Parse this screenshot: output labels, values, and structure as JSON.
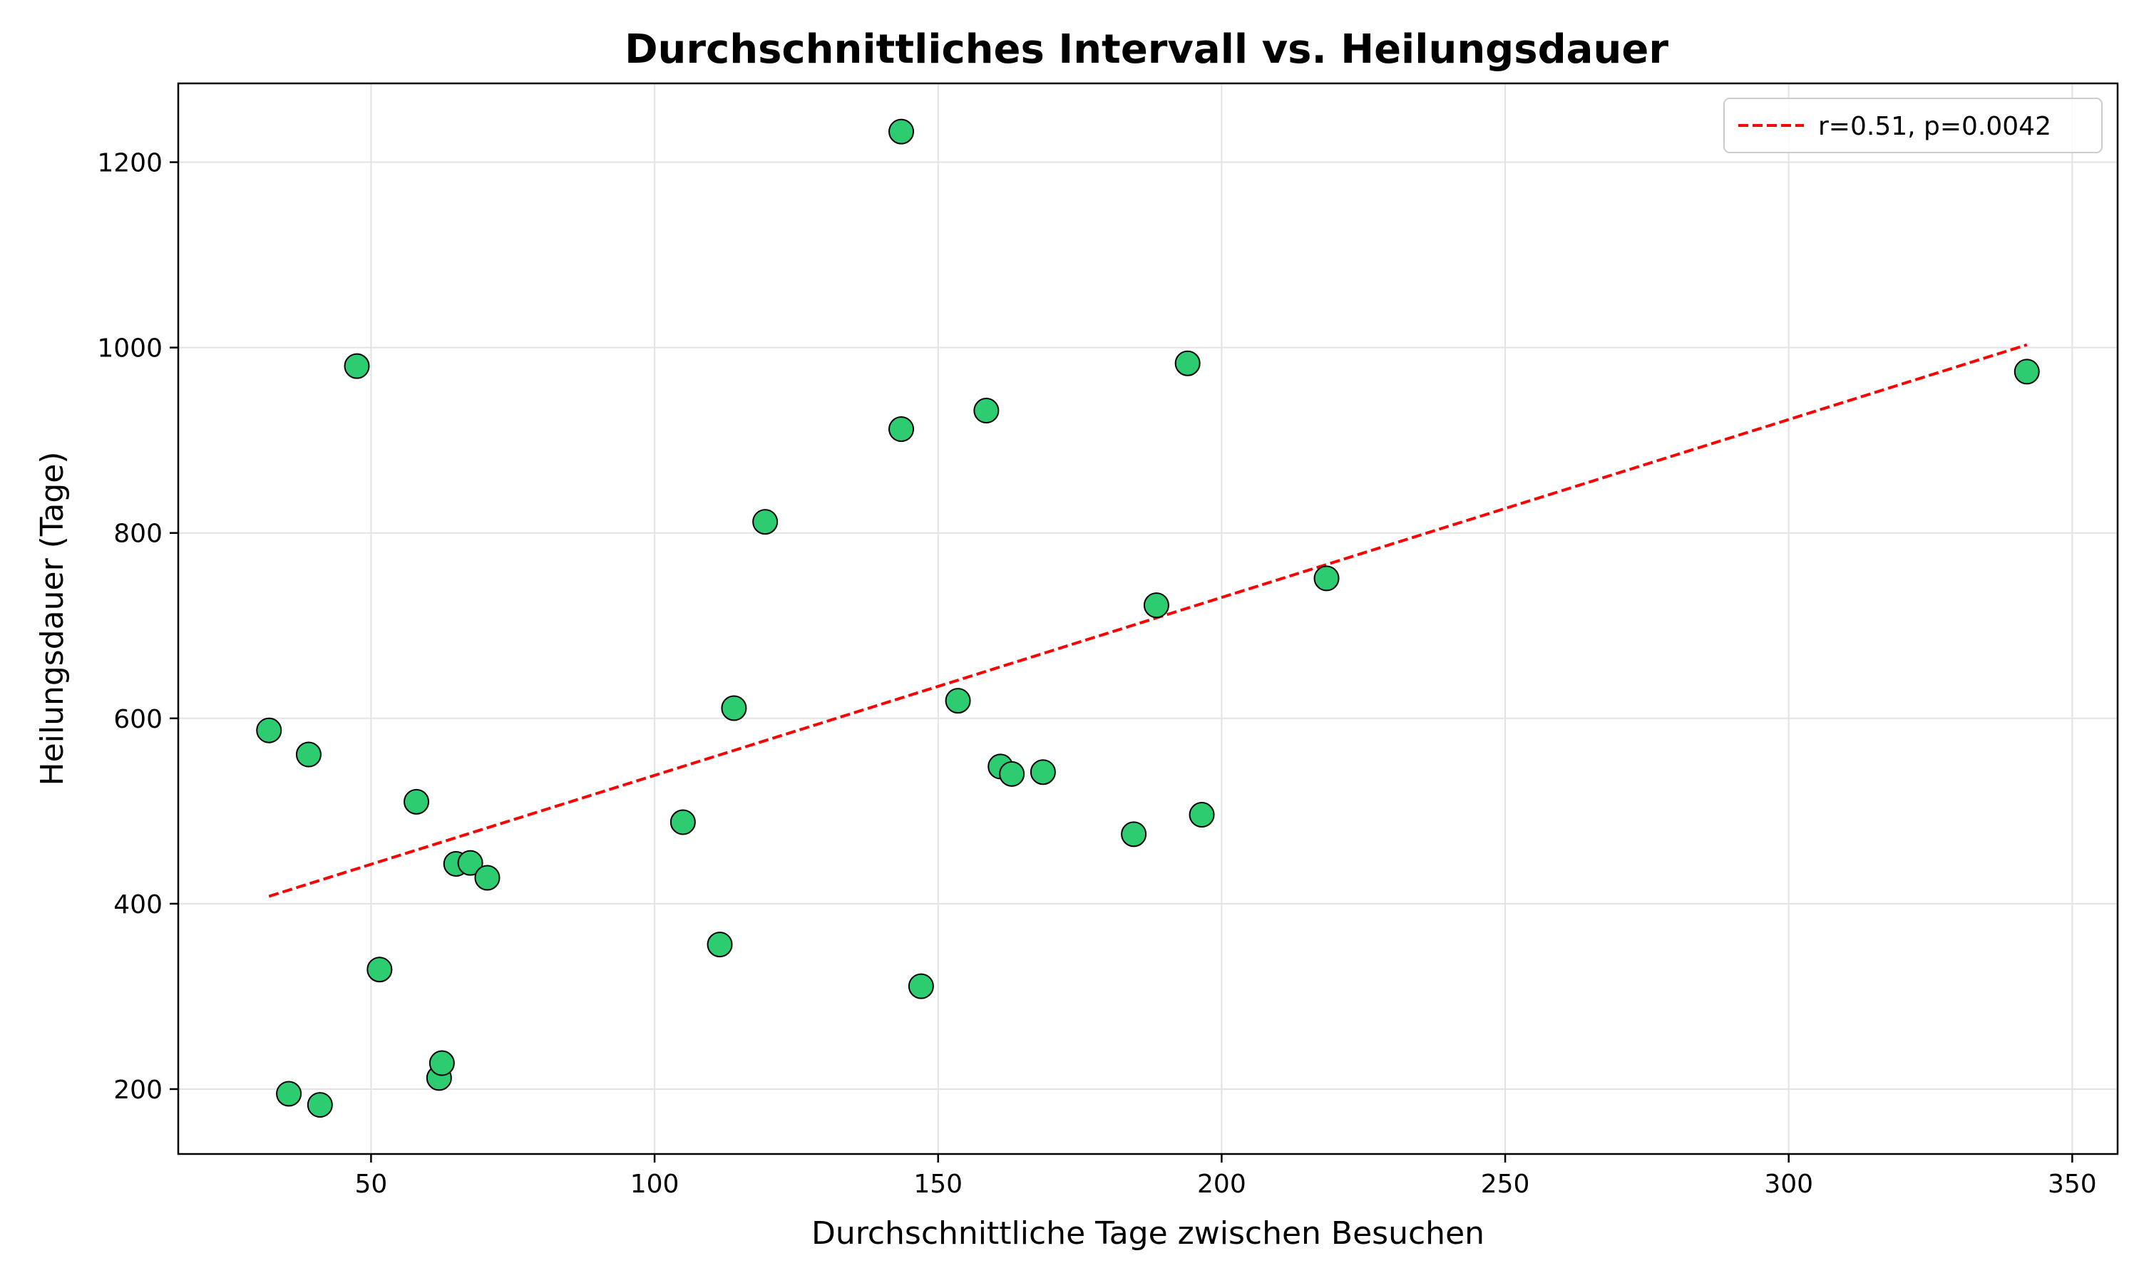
{
  "chart_data": {
    "type": "scatter",
    "title": "Durchschnittliches Intervall vs. Heilungsdauer",
    "xlabel": "Durchschnittliche Tage zwischen Besuchen",
    "ylabel": "Heilungsdauer (Tage)",
    "xlim": [
      16,
      358
    ],
    "ylim": [
      130,
      1285
    ],
    "xticks": [
      50,
      100,
      150,
      200,
      250,
      300,
      350
    ],
    "yticks": [
      200,
      400,
      600,
      800,
      1000,
      1200
    ],
    "grid": true,
    "legend_position": "top-right",
    "colors": {
      "points": "#2ecc71",
      "point_edge": "#000000",
      "trend_line": "#ff0000"
    },
    "series": [
      {
        "type": "scatter",
        "points": [
          {
            "x": 32,
            "y": 587
          },
          {
            "x": 35.5,
            "y": 195
          },
          {
            "x": 39,
            "y": 561
          },
          {
            "x": 41,
            "y": 183
          },
          {
            "x": 47.5,
            "y": 980
          },
          {
            "x": 51.5,
            "y": 329
          },
          {
            "x": 58,
            "y": 510
          },
          {
            "x": 62,
            "y": 212
          },
          {
            "x": 62.5,
            "y": 228
          },
          {
            "x": 65,
            "y": 443
          },
          {
            "x": 67.5,
            "y": 444
          },
          {
            "x": 70.5,
            "y": 428
          },
          {
            "x": 105,
            "y": 488
          },
          {
            "x": 111.5,
            "y": 356
          },
          {
            "x": 114,
            "y": 611
          },
          {
            "x": 119.5,
            "y": 812
          },
          {
            "x": 143.5,
            "y": 1233
          },
          {
            "x": 143.5,
            "y": 912
          },
          {
            "x": 147,
            "y": 311
          },
          {
            "x": 153.5,
            "y": 619
          },
          {
            "x": 158.5,
            "y": 932
          },
          {
            "x": 161,
            "y": 548
          },
          {
            "x": 163,
            "y": 540
          },
          {
            "x": 168.5,
            "y": 542
          },
          {
            "x": 184.5,
            "y": 475
          },
          {
            "x": 188.5,
            "y": 722
          },
          {
            "x": 194,
            "y": 983
          },
          {
            "x": 196.5,
            "y": 496
          },
          {
            "x": 218.5,
            "y": 751
          },
          {
            "x": 342,
            "y": 974
          }
        ]
      },
      {
        "type": "line",
        "style": "dashed",
        "name": "r=0.51, p=0.0042",
        "points": [
          {
            "x": 32,
            "y": 408
          },
          {
            "x": 342,
            "y": 1003
          }
        ]
      }
    ]
  }
}
